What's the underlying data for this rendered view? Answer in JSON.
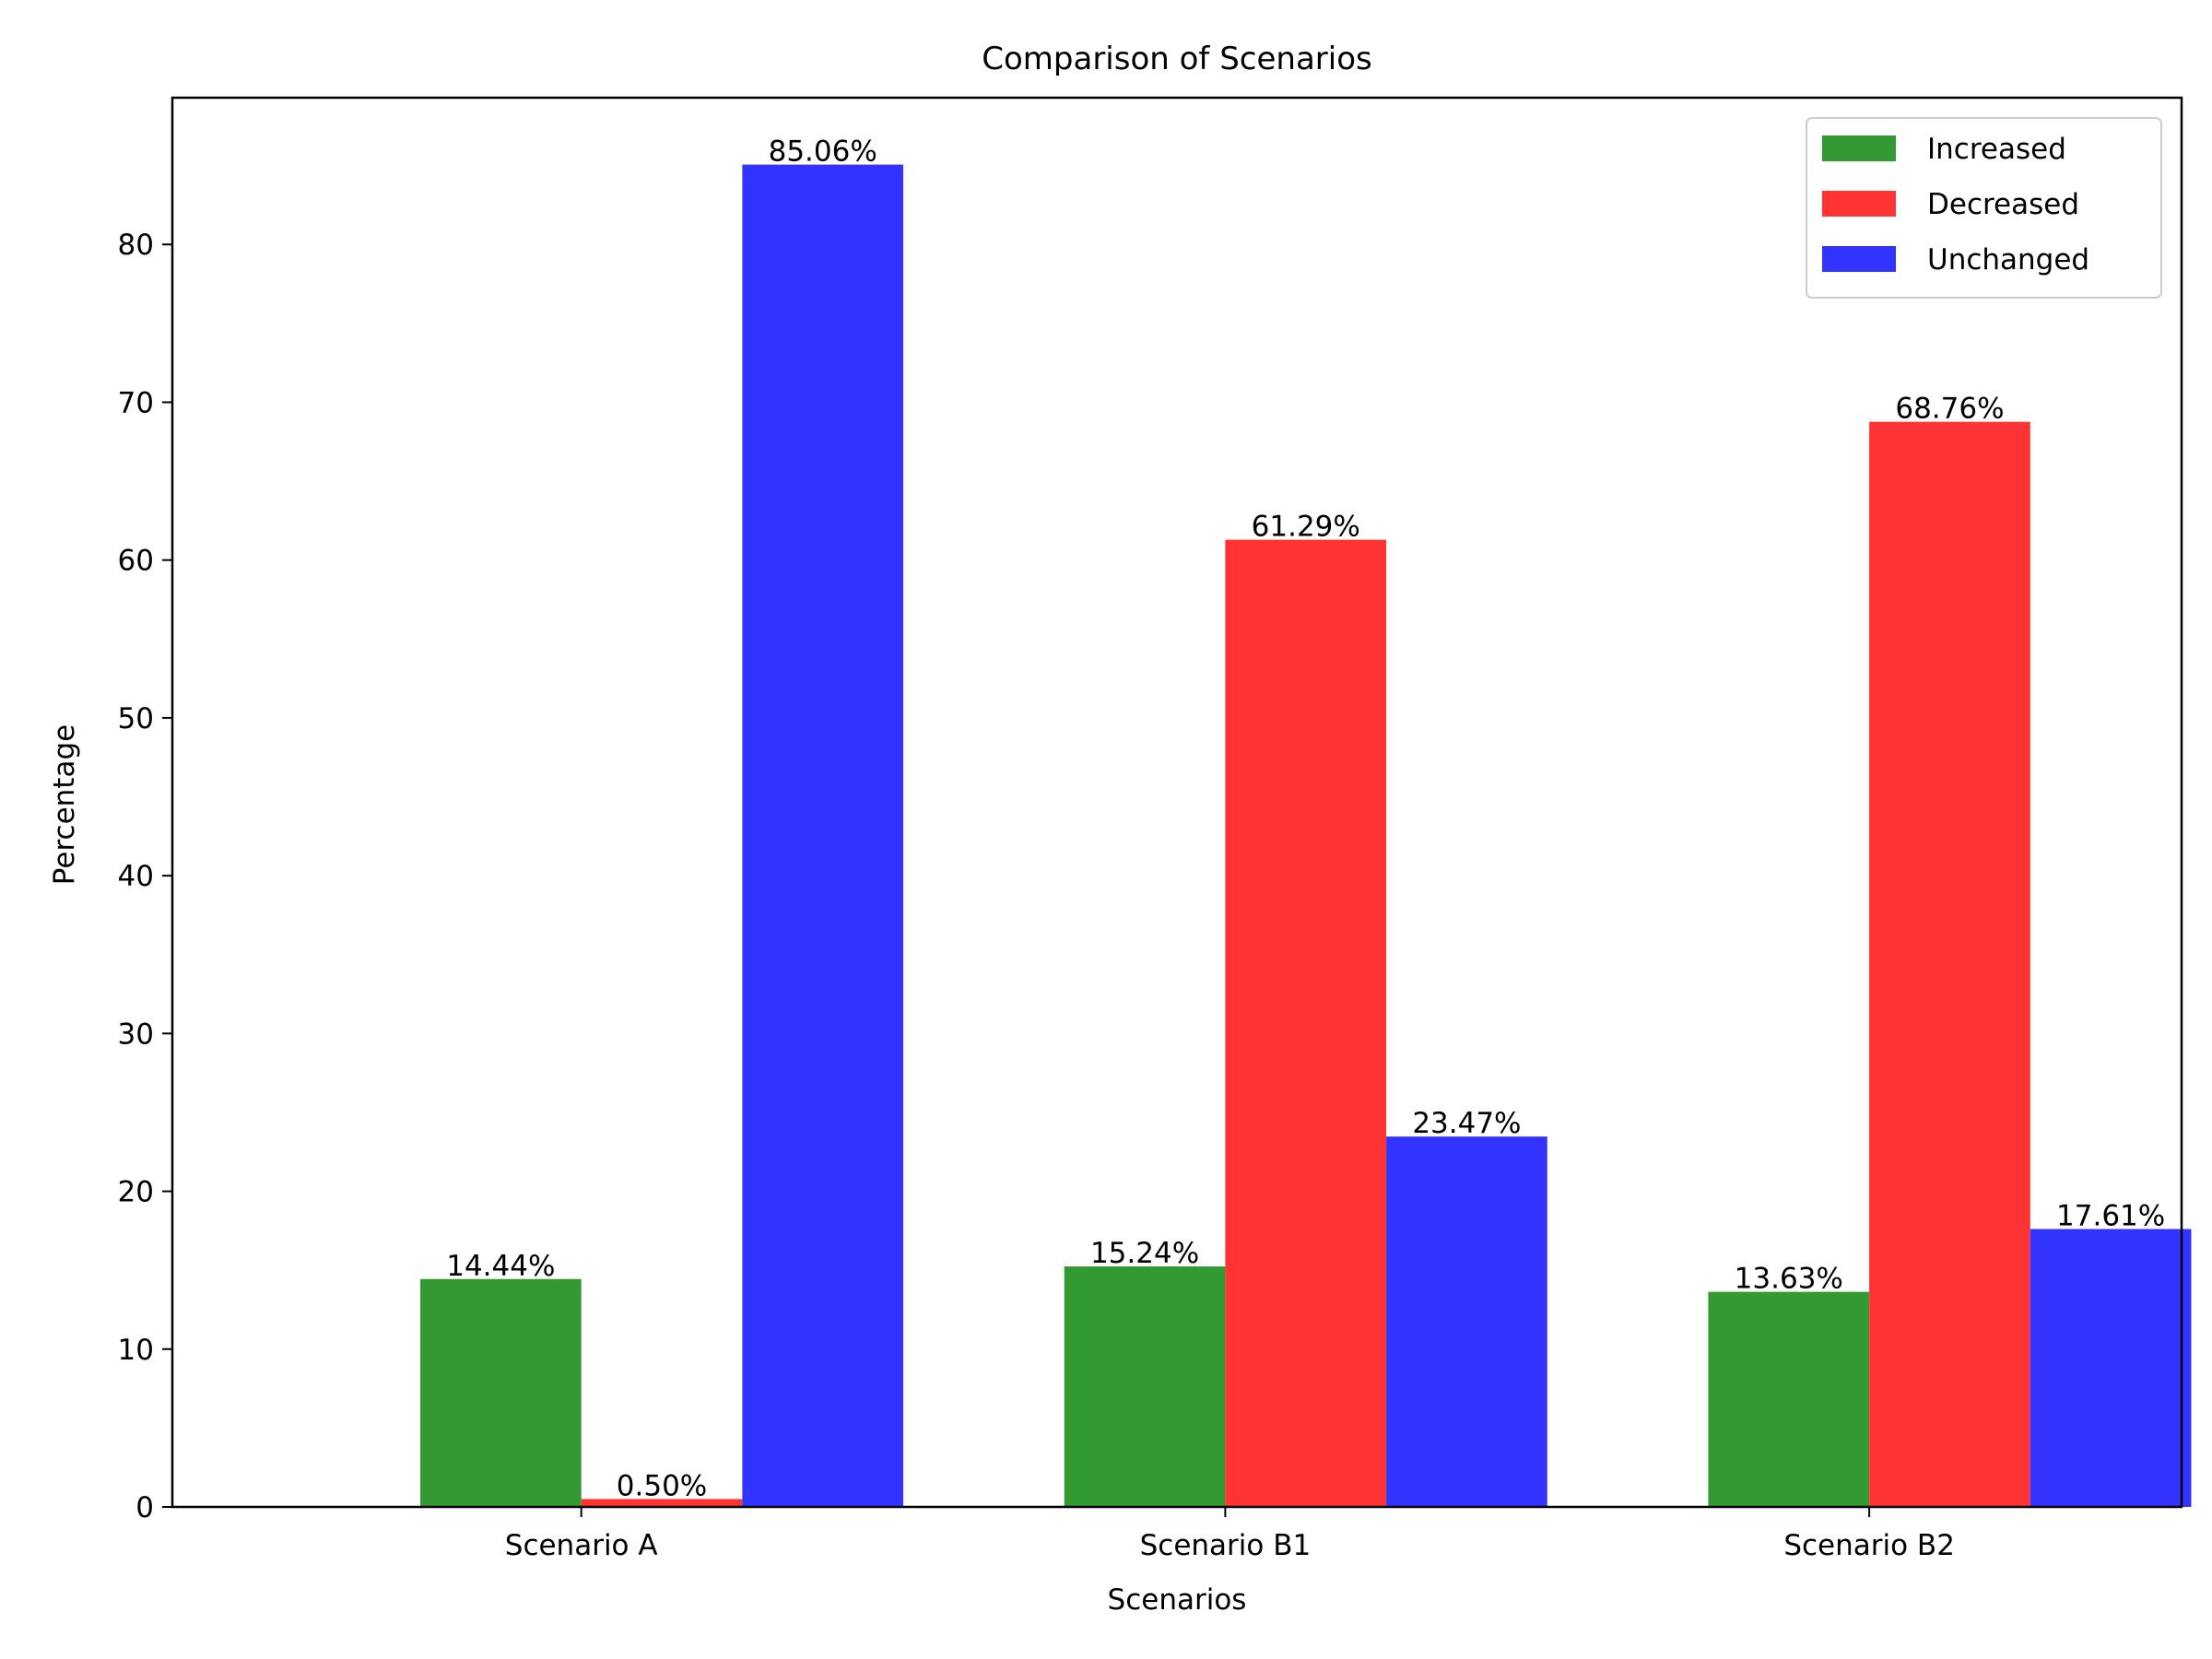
{
  "chart_data": {
    "type": "bar",
    "title": "Comparison of Scenarios",
    "xlabel": "Scenarios",
    "ylabel": "Percentage",
    "categories": [
      "Scenario A",
      "Scenario B1",
      "Scenario B2"
    ],
    "ylim": [
      0,
      89.3
    ],
    "yticks": [
      0,
      10,
      20,
      30,
      40,
      50,
      60,
      70,
      80
    ],
    "grid": false,
    "legend_position": "top-right",
    "series": [
      {
        "name": "Increased",
        "color": "#339933",
        "values": [
          14.44,
          15.24,
          13.63
        ],
        "labels": [
          "14.44%",
          "15.24%",
          "13.63%"
        ]
      },
      {
        "name": "Decreased",
        "color": "#ff3333",
        "values": [
          0.5,
          61.29,
          68.76
        ],
        "labels": [
          "0.50%",
          "61.29%",
          "68.76%"
        ]
      },
      {
        "name": "Unchanged",
        "color": "#3333ff",
        "values": [
          85.06,
          23.47,
          17.61
        ],
        "labels": [
          "85.06%",
          "23.47%",
          "17.61%"
        ]
      }
    ]
  }
}
